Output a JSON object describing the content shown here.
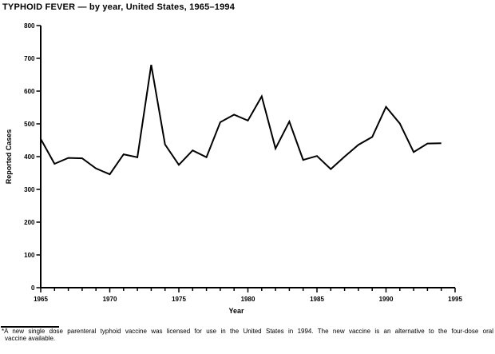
{
  "page": {
    "title": "TYPHOID FEVER — by year, United States, 1965–1994",
    "footnote_lines": [
      "*A new single dose parenteral typhoid vaccine was licensed for use in the United States in 1994. The new vaccine is an alternative to the four-dose oral",
      "vaccine available."
    ]
  },
  "colors": {
    "ink": "#000000",
    "background": "#ffffff"
  },
  "chart_data": {
    "type": "line",
    "title": "TYPHOID FEVER — by year, United States, 1965–1994",
    "xlabel": "Year",
    "ylabel": "Reported Cases",
    "x": [
      1965,
      1966,
      1967,
      1968,
      1969,
      1970,
      1971,
      1972,
      1973,
      1974,
      1975,
      1976,
      1977,
      1978,
      1979,
      1980,
      1981,
      1982,
      1983,
      1984,
      1985,
      1986,
      1987,
      1988,
      1989,
      1990,
      1991,
      1992,
      1993,
      1994
    ],
    "values": [
      454,
      378,
      396,
      395,
      364,
      346,
      407,
      398,
      680,
      437,
      375,
      419,
      398,
      505,
      528,
      510,
      584,
      425,
      507,
      390,
      402,
      362,
      400,
      436,
      460,
      552,
      501,
      414,
      440,
      441
    ],
    "xlim": [
      1965,
      1995
    ],
    "ylim": [
      0,
      800
    ],
    "y_tick_step": 100,
    "x_major_tick_step": 5,
    "x_minor_tick_step": 1,
    "grid": false,
    "legend": false,
    "line_color": "#000000",
    "line_width": 2
  }
}
